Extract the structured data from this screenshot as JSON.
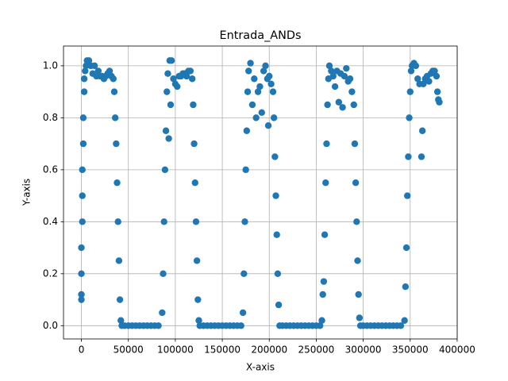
{
  "chart_data": {
    "type": "scatter",
    "title": "Entrada_ANDs",
    "xlabel": "X-axis",
    "ylabel": "Y-axis",
    "color": "#1f77b4",
    "grid": true,
    "xlim": [
      -19050,
      400050
    ],
    "ylim": [
      -0.051,
      1.076
    ],
    "xticks": [
      0,
      50000,
      100000,
      150000,
      200000,
      250000,
      300000,
      350000,
      400000
    ],
    "yticks": [
      {
        "value": 0,
        "label": "0.0"
      },
      {
        "value": 0.2,
        "label": "0.2"
      },
      {
        "value": 0.4,
        "label": "0.4"
      },
      {
        "value": 0.6,
        "label": "0.6"
      },
      {
        "value": 0.8,
        "label": "0.8"
      },
      {
        "value": 1,
        "label": "1.0"
      }
    ],
    "x": [
      0,
      0,
      0,
      0,
      1000,
      1000,
      1000,
      2000,
      2000,
      3000,
      3000,
      4000,
      5000,
      6000,
      8000,
      10000,
      12000,
      14000,
      16000,
      18000,
      20000,
      22000,
      24000,
      26000,
      28000,
      30000,
      32000,
      34000,
      35000,
      36000,
      37000,
      38000,
      39000,
      40000,
      41000,
      42000,
      43000,
      46000,
      50000,
      54000,
      58000,
      62000,
      66000,
      70000,
      74000,
      78000,
      82000,
      86000,
      87000,
      88000,
      89000,
      90000,
      91000,
      92000,
      93000,
      94000,
      95000,
      96000,
      98000,
      100000,
      102000,
      104000,
      106000,
      108000,
      110000,
      112000,
      114000,
      116000,
      118000,
      119000,
      120000,
      121000,
      122000,
      123000,
      124000,
      125000,
      126000,
      130000,
      134000,
      138000,
      142000,
      146000,
      150000,
      154000,
      158000,
      162000,
      166000,
      170000,
      172000,
      173000,
      174000,
      175000,
      176000,
      177000,
      178000,
      180000,
      182000,
      184000,
      186000,
      188000,
      190000,
      192000,
      194000,
      196000,
      198000,
      199000,
      200000,
      202000,
      204000,
      205000,
      206000,
      207000,
      208000,
      209000,
      210000,
      211000,
      214000,
      218000,
      222000,
      226000,
      230000,
      234000,
      238000,
      242000,
      246000,
      250000,
      254000,
      256000,
      257000,
      258000,
      259000,
      260000,
      261000,
      262000,
      263000,
      264000,
      266000,
      268000,
      270000,
      272000,
      274000,
      276000,
      278000,
      280000,
      282000,
      284000,
      286000,
      288000,
      290000,
      291000,
      292000,
      293000,
      294000,
      295000,
      296000,
      297000,
      300000,
      304000,
      308000,
      312000,
      316000,
      320000,
      324000,
      328000,
      332000,
      336000,
      340000,
      344000,
      345000,
      346000,
      347000,
      348000,
      349000,
      350000,
      351000,
      352000,
      354000,
      356000,
      358000,
      360000,
      362000,
      363000,
      364000,
      366000,
      368000,
      370000,
      372000,
      374000,
      376000,
      378000,
      379000,
      380000,
      381000
    ],
    "values": [
      0.1,
      0.12,
      0.2,
      0.3,
      0.4,
      0.5,
      0.6,
      0.7,
      0.8,
      0.9,
      0.95,
      0.98,
      1.0,
      1.02,
      1.02,
      1.0,
      0.97,
      1.0,
      0.96,
      0.98,
      0.96,
      0.96,
      0.95,
      0.96,
      0.97,
      0.98,
      0.96,
      0.95,
      0.9,
      0.8,
      0.7,
      0.55,
      0.4,
      0.25,
      0.1,
      0.02,
      0,
      0,
      0,
      0,
      0,
      0,
      0,
      0,
      0,
      0,
      0,
      0.05,
      0.2,
      0.4,
      0.6,
      0.75,
      0.9,
      0.97,
      0.72,
      1.02,
      0.85,
      1.02,
      0.95,
      0.93,
      0.92,
      0.96,
      0.96,
      0.97,
      0.97,
      0.96,
      0.98,
      0.98,
      0.95,
      0.85,
      0.7,
      0.55,
      0.4,
      0.25,
      0.1,
      0.02,
      0,
      0,
      0,
      0,
      0,
      0,
      0,
      0,
      0,
      0,
      0,
      0,
      0.05,
      0.2,
      0.4,
      0.6,
      0.75,
      0.9,
      0.98,
      1.01,
      0.85,
      0.95,
      0.8,
      0.9,
      0.92,
      0.82,
      0.98,
      1.0,
      0.95,
      0.77,
      0.96,
      0.93,
      0.9,
      0.8,
      0.65,
      0.5,
      0.35,
      0.2,
      0.08,
      0,
      0,
      0,
      0,
      0,
      0,
      0,
      0,
      0,
      0,
      0,
      0,
      0.02,
      0.12,
      0.17,
      0.35,
      0.55,
      0.7,
      0.85,
      0.95,
      1.0,
      0.98,
      0.96,
      0.92,
      0.98,
      0.86,
      0.97,
      0.84,
      0.96,
      0.99,
      0.94,
      0.95,
      0.9,
      0.85,
      0.7,
      0.55,
      0.4,
      0.25,
      0.12,
      0.03,
      0,
      0,
      0,
      0,
      0,
      0,
      0,
      0,
      0,
      0,
      0,
      0,
      0.02,
      0.15,
      0.3,
      0.5,
      0.65,
      0.8,
      0.9,
      0.98,
      1.0,
      1.01,
      1.0,
      0.95,
      0.93,
      0.65,
      0.75,
      0.93,
      0.95,
      0.96,
      0.94,
      0.97,
      0.98,
      0.98,
      0.96,
      0.9,
      0.87,
      0.86
    ]
  }
}
